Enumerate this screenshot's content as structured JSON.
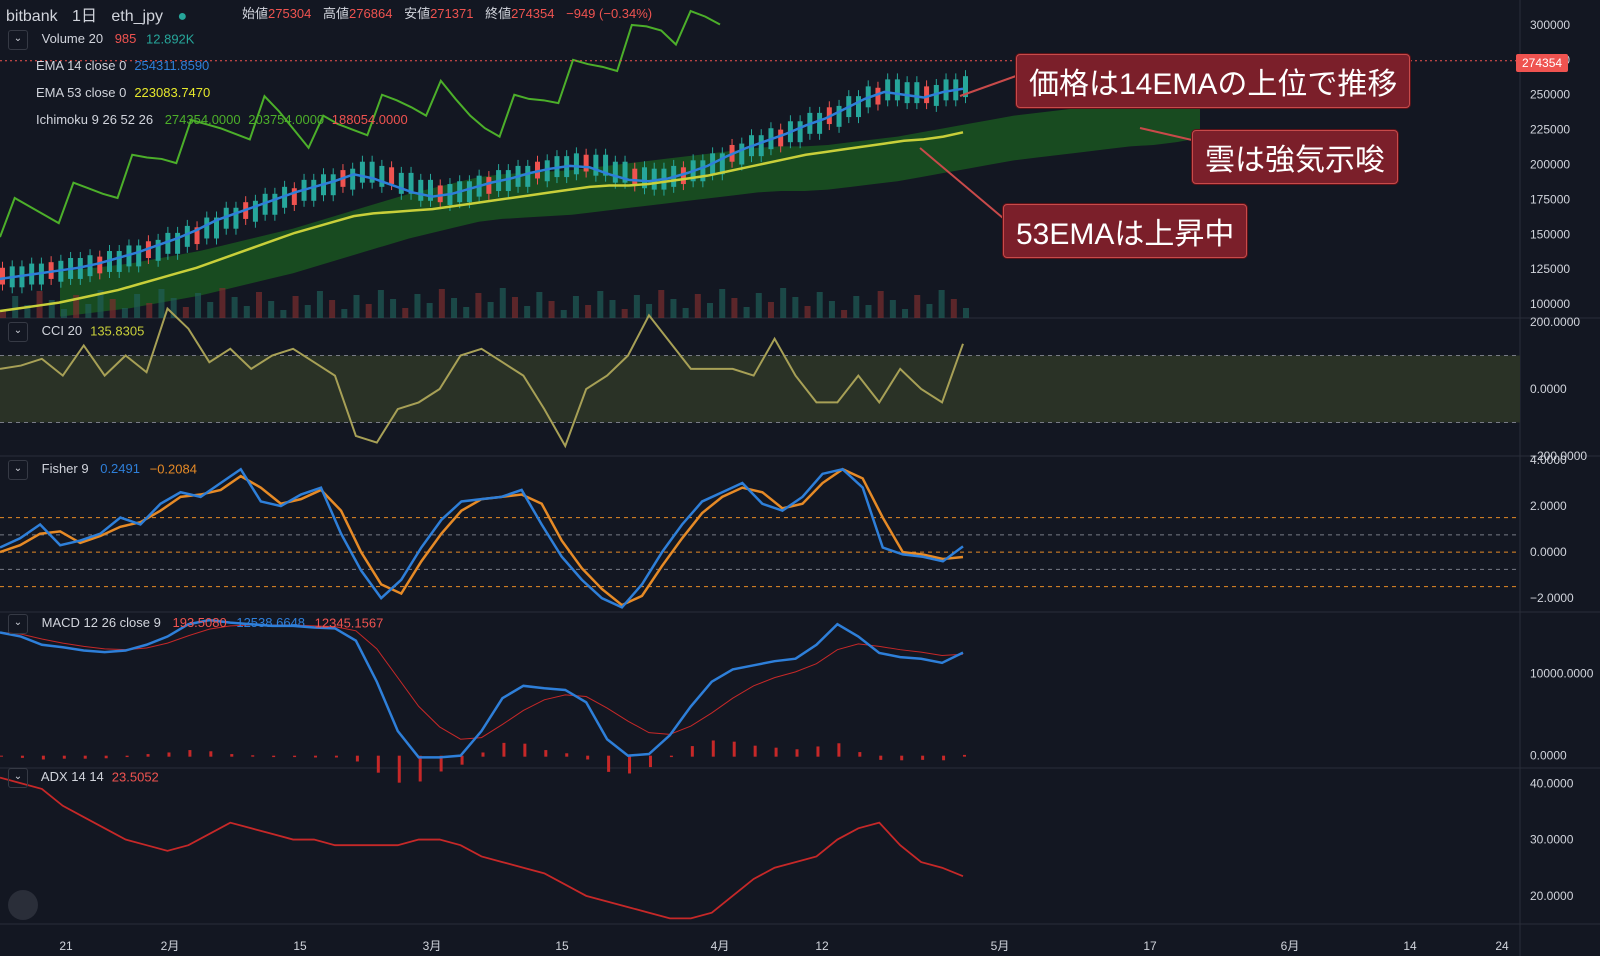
{
  "header": {
    "exchange": "bitbank",
    "interval": "1日",
    "symbol": "eth_jpy",
    "ohlc": [
      {
        "k": "始値",
        "v": "275304"
      },
      {
        "k": "高値",
        "v": "276864"
      },
      {
        "k": "安値",
        "v": "271371"
      },
      {
        "k": "終値",
        "v": "274354"
      },
      {
        "k": "",
        "v": "−949 (−0.34%)"
      }
    ]
  },
  "indicators": {
    "volume": {
      "name": "Volume 20",
      "v1": "985",
      "v2": "12.892K"
    },
    "ema14": {
      "name": "EMA 14 close 0",
      "v": "254311.8590"
    },
    "ema53": {
      "name": "EMA 53 close 0",
      "v": "223083.7470"
    },
    "ichimoku": {
      "name": "Ichimoku 9 26 52 26",
      "v1": "274354.0000",
      "v2": "203754.0000",
      "v3": "188054.0000"
    },
    "cci": {
      "name": "CCI 20",
      "v": "135.8305"
    },
    "fisher": {
      "name": "Fisher 9",
      "v1": "0.2491",
      "v2": "−0.2084"
    },
    "macd": {
      "name": "MACD 12 26 close 9",
      "v1": "193.5080",
      "v2": "12538.6648",
      "v3": "12345.1567"
    },
    "adx": {
      "name": "ADX 14 14",
      "v": "23.5052"
    }
  },
  "annotations": {
    "a1": "価格は14EMAの上位で推移",
    "a2": "雲は強気示唆",
    "a3": "53EMAは上昇中"
  },
  "last_price": "274354",
  "colors": {
    "bg": "#131722",
    "up": "#26a69a",
    "down": "#ef5350",
    "ema14": "#2e7fd9",
    "ema53": "#c8cf3a",
    "chikou": "#4caf2a",
    "cloud": "#1b5e20",
    "cci": "#a7a056",
    "fisher": "#2e7fd9",
    "trigger": "#e68a26",
    "macd_signal": "#c62828",
    "adx": "#c62828"
  },
  "chart_data": {
    "type": "line",
    "x_ticks": [
      "21",
      "2月",
      "15",
      "3月",
      "15",
      "4月",
      "12",
      "5月",
      "17",
      "6月",
      "14",
      "24"
    ],
    "price_axis": {
      "ticks": [
        "300000",
        "275000",
        "250000",
        "225000",
        "200000",
        "175000",
        "150000",
        "125000",
        "100000"
      ],
      "ylim": [
        90000,
        305000
      ]
    },
    "series": [
      {
        "name": "EMA 14 close 0",
        "pane": "price",
        "values": [
          118000,
          120000,
          122000,
          124000,
          126000,
          129000,
          133000,
          137000,
          142000,
          147000,
          153000,
          160000,
          165000,
          170000,
          175000,
          180000,
          184000,
          188000,
          193000,
          190000,
          185000,
          180000,
          177000,
          179000,
          183000,
          187000,
          190000,
          194000,
          197000,
          199000,
          198000,
          193000,
          189000,
          188000,
          190000,
          194000,
          199000,
          206000,
          212000,
          217000,
          222000,
          228000,
          233000,
          240000,
          247000,
          252000,
          250000,
          248000,
          252000,
          254311
        ]
      },
      {
        "name": "EMA 53 close 0",
        "pane": "price",
        "values": [
          95000,
          97000,
          99000,
          101000,
          104000,
          107000,
          110000,
          114000,
          118000,
          122000,
          126000,
          131000,
          136000,
          141000,
          146000,
          151000,
          155000,
          159000,
          163000,
          165000,
          166000,
          167000,
          168000,
          170000,
          172000,
          174000,
          176000,
          178000,
          180000,
          182000,
          184000,
          185000,
          185000,
          186000,
          188000,
          190000,
          192000,
          195000,
          198000,
          201000,
          204000,
          207000,
          209000,
          211000,
          213000,
          215000,
          217000,
          218000,
          220000,
          223083
        ]
      },
      {
        "name": "CCI 20",
        "pane": "cci",
        "ylim": [
          -200,
          200
        ],
        "values": [
          60,
          70,
          90,
          40,
          130,
          40,
          100,
          50,
          240,
          180,
          80,
          120,
          60,
          100,
          120,
          80,
          40,
          -140,
          -160,
          -60,
          -40,
          0,
          100,
          120,
          80,
          40,
          -60,
          -170,
          0,
          40,
          100,
          220,
          140,
          60,
          60,
          60,
          40,
          150,
          40,
          -40,
          -40,
          40,
          -40,
          60,
          0,
          -40,
          135
        ]
      },
      {
        "name": "Fisher 9",
        "pane": "fisher",
        "ylim": [
          -2.6,
          4
        ],
        "values": [
          0.2,
          0.6,
          1.2,
          0.3,
          0.5,
          0.8,
          1.5,
          1.2,
          2.1,
          2.6,
          2.4,
          3.0,
          3.6,
          2.2,
          2.0,
          2.5,
          2.8,
          0.8,
          -0.8,
          -2.0,
          -1.2,
          0.2,
          1.4,
          2.2,
          2.3,
          2.4,
          2.7,
          1.2,
          -0.2,
          -1.2,
          -2.0,
          -2.4,
          -1.4,
          0,
          1.2,
          2.2,
          2.6,
          3.0,
          2.1,
          1.8,
          2.4,
          3.4,
          3.6,
          2.8,
          0.2,
          -0.1,
          -0.2,
          -0.4,
          0.25
        ]
      },
      {
        "name": "Fisher trigger",
        "pane": "fisher",
        "values": [
          0,
          0.3,
          0.8,
          0.9,
          0.4,
          0.7,
          1.1,
          1.3,
          1.8,
          2.4,
          2.5,
          2.7,
          3.3,
          2.8,
          2.1,
          2.3,
          2.7,
          1.8,
          0.0,
          -1.4,
          -1.8,
          -0.4,
          0.8,
          1.8,
          2.3,
          2.4,
          2.5,
          2.1,
          0.5,
          -0.7,
          -1.6,
          -2.3,
          -1.9,
          -0.6,
          0.6,
          1.7,
          2.4,
          2.8,
          2.6,
          1.9,
          2.1,
          3.0,
          3.6,
          3.2,
          1.5,
          0.0,
          -0.1,
          -0.3,
          -0.21
        ]
      },
      {
        "name": "MACD",
        "pane": "macd",
        "ylim": [
          -1500,
          17000
        ],
        "values": [
          15000,
          14500,
          13500,
          13200,
          12800,
          12600,
          12800,
          13500,
          14500,
          16000,
          16500,
          16200,
          16000,
          15800,
          15800,
          15600,
          15500,
          14000,
          9000,
          3000,
          -200,
          -200,
          0,
          3000,
          7000,
          8500,
          8200,
          8000,
          6500,
          2000,
          0,
          200,
          2500,
          6000,
          9000,
          10500,
          11000,
          11500,
          11800,
          13500,
          16000,
          14500,
          12500,
          12000,
          11800,
          11300,
          12538
        ]
      },
      {
        "name": "Signal",
        "pane": "macd",
        "values": [
          15000,
          14800,
          14200,
          13700,
          13300,
          13000,
          12900,
          13100,
          13700,
          14600,
          15400,
          15800,
          15900,
          15900,
          15900,
          15800,
          15700,
          15200,
          13000,
          9500,
          6000,
          3500,
          2000,
          2200,
          3800,
          5500,
          6800,
          7400,
          7200,
          5800,
          4200,
          2800,
          2600,
          3600,
          5200,
          7000,
          8500,
          9500,
          10200,
          11200,
          12900,
          13600,
          13300,
          12900,
          12600,
          12200,
          12345
        ]
      },
      {
        "name": "ADX 14 14",
        "pane": "adx",
        "ylim": [
          15,
          42
        ],
        "values": [
          41,
          40,
          39,
          36,
          34,
          32,
          30,
          29,
          28,
          29,
          31,
          33,
          32,
          31,
          30,
          30,
          29,
          29,
          29,
          29,
          30,
          30,
          29,
          27,
          26,
          25,
          24,
          22,
          20,
          19,
          18,
          17,
          16,
          16,
          17,
          20,
          23,
          25,
          26,
          27,
          30,
          32,
          33,
          29,
          26,
          25,
          23.5
        ]
      }
    ]
  }
}
